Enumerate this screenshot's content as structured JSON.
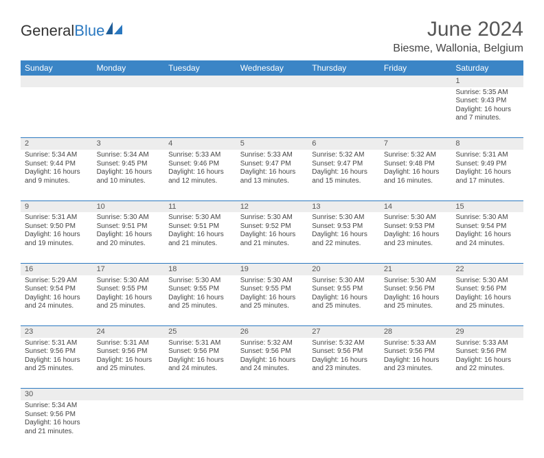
{
  "brand": {
    "general": "General",
    "blue": "Blue"
  },
  "title": "June 2024",
  "location": "Biesme, Wallonia, Belgium",
  "colors": {
    "header_bg": "#3b85c6",
    "header_text": "#ffffff",
    "grid_line": "#2a78c0",
    "daynum_bg": "#ededed",
    "text": "#444444",
    "title_text": "#555555"
  },
  "weekdays": [
    "Sunday",
    "Monday",
    "Tuesday",
    "Wednesday",
    "Thursday",
    "Friday",
    "Saturday"
  ],
  "first_weekday_index": 6,
  "days": [
    {
      "n": 1,
      "sunrise": "5:35 AM",
      "sunset": "9:43 PM",
      "daylight": "16 hours and 7 minutes."
    },
    {
      "n": 2,
      "sunrise": "5:34 AM",
      "sunset": "9:44 PM",
      "daylight": "16 hours and 9 minutes."
    },
    {
      "n": 3,
      "sunrise": "5:34 AM",
      "sunset": "9:45 PM",
      "daylight": "16 hours and 10 minutes."
    },
    {
      "n": 4,
      "sunrise": "5:33 AM",
      "sunset": "9:46 PM",
      "daylight": "16 hours and 12 minutes."
    },
    {
      "n": 5,
      "sunrise": "5:33 AM",
      "sunset": "9:47 PM",
      "daylight": "16 hours and 13 minutes."
    },
    {
      "n": 6,
      "sunrise": "5:32 AM",
      "sunset": "9:47 PM",
      "daylight": "16 hours and 15 minutes."
    },
    {
      "n": 7,
      "sunrise": "5:32 AM",
      "sunset": "9:48 PM",
      "daylight": "16 hours and 16 minutes."
    },
    {
      "n": 8,
      "sunrise": "5:31 AM",
      "sunset": "9:49 PM",
      "daylight": "16 hours and 17 minutes."
    },
    {
      "n": 9,
      "sunrise": "5:31 AM",
      "sunset": "9:50 PM",
      "daylight": "16 hours and 19 minutes."
    },
    {
      "n": 10,
      "sunrise": "5:30 AM",
      "sunset": "9:51 PM",
      "daylight": "16 hours and 20 minutes."
    },
    {
      "n": 11,
      "sunrise": "5:30 AM",
      "sunset": "9:51 PM",
      "daylight": "16 hours and 21 minutes."
    },
    {
      "n": 12,
      "sunrise": "5:30 AM",
      "sunset": "9:52 PM",
      "daylight": "16 hours and 21 minutes."
    },
    {
      "n": 13,
      "sunrise": "5:30 AM",
      "sunset": "9:53 PM",
      "daylight": "16 hours and 22 minutes."
    },
    {
      "n": 14,
      "sunrise": "5:30 AM",
      "sunset": "9:53 PM",
      "daylight": "16 hours and 23 minutes."
    },
    {
      "n": 15,
      "sunrise": "5:30 AM",
      "sunset": "9:54 PM",
      "daylight": "16 hours and 24 minutes."
    },
    {
      "n": 16,
      "sunrise": "5:29 AM",
      "sunset": "9:54 PM",
      "daylight": "16 hours and 24 minutes."
    },
    {
      "n": 17,
      "sunrise": "5:30 AM",
      "sunset": "9:55 PM",
      "daylight": "16 hours and 25 minutes."
    },
    {
      "n": 18,
      "sunrise": "5:30 AM",
      "sunset": "9:55 PM",
      "daylight": "16 hours and 25 minutes."
    },
    {
      "n": 19,
      "sunrise": "5:30 AM",
      "sunset": "9:55 PM",
      "daylight": "16 hours and 25 minutes."
    },
    {
      "n": 20,
      "sunrise": "5:30 AM",
      "sunset": "9:55 PM",
      "daylight": "16 hours and 25 minutes."
    },
    {
      "n": 21,
      "sunrise": "5:30 AM",
      "sunset": "9:56 PM",
      "daylight": "16 hours and 25 minutes."
    },
    {
      "n": 22,
      "sunrise": "5:30 AM",
      "sunset": "9:56 PM",
      "daylight": "16 hours and 25 minutes."
    },
    {
      "n": 23,
      "sunrise": "5:31 AM",
      "sunset": "9:56 PM",
      "daylight": "16 hours and 25 minutes."
    },
    {
      "n": 24,
      "sunrise": "5:31 AM",
      "sunset": "9:56 PM",
      "daylight": "16 hours and 25 minutes."
    },
    {
      "n": 25,
      "sunrise": "5:31 AM",
      "sunset": "9:56 PM",
      "daylight": "16 hours and 24 minutes."
    },
    {
      "n": 26,
      "sunrise": "5:32 AM",
      "sunset": "9:56 PM",
      "daylight": "16 hours and 24 minutes."
    },
    {
      "n": 27,
      "sunrise": "5:32 AM",
      "sunset": "9:56 PM",
      "daylight": "16 hours and 23 minutes."
    },
    {
      "n": 28,
      "sunrise": "5:33 AM",
      "sunset": "9:56 PM",
      "daylight": "16 hours and 23 minutes."
    },
    {
      "n": 29,
      "sunrise": "5:33 AM",
      "sunset": "9:56 PM",
      "daylight": "16 hours and 22 minutes."
    },
    {
      "n": 30,
      "sunrise": "5:34 AM",
      "sunset": "9:56 PM",
      "daylight": "16 hours and 21 minutes."
    }
  ],
  "labels": {
    "sunrise": "Sunrise:",
    "sunset": "Sunset:",
    "daylight": "Daylight:"
  }
}
